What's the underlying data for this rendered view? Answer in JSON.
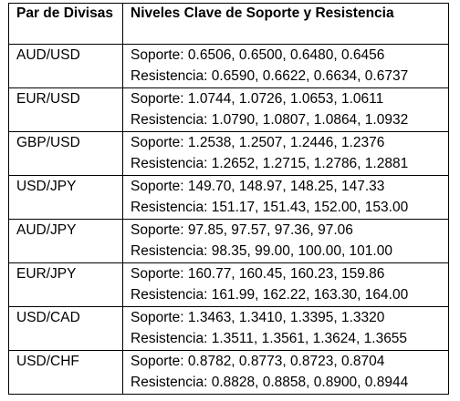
{
  "table": {
    "headers": {
      "pair": "Par de Divisas",
      "levels": "Niveles Clave de Soporte y Resistencia"
    },
    "rows": [
      {
        "pair": "AUD/USD",
        "support": "Soporte: 0.6506, 0.6500, 0.6480, 0.6456",
        "resistance": "Resistencia: 0.6590, 0.6622, 0.6634, 0.6737"
      },
      {
        "pair": "EUR/USD",
        "support": "Soporte: 1.0744, 1.0726, 1.0653, 1.0611",
        "resistance": "Resistencia: 1.0790, 1.0807, 1.0864, 1.0932"
      },
      {
        "pair": "GBP/USD",
        "support": "Soporte: 1.2538, 1.2507, 1.2446, 1.2376",
        "resistance": "Resistencia: 1.2652, 1.2715, 1.2786, 1.2881"
      },
      {
        "pair": "USD/JPY",
        "support": "Soporte: 149.70, 148.97, 148.25, 147.33",
        "resistance": "Resistencia: 151.17, 151.43, 152.00, 153.00"
      },
      {
        "pair": "AUD/JPY",
        "support": "Soporte: 97.85, 97.57, 97.36, 97.06",
        "resistance": "Resistencia: 98.35, 99.00, 100.00, 101.00"
      },
      {
        "pair": "EUR/JPY",
        "support": "Soporte: 160.77, 160.45, 160.23, 159.86",
        "resistance": "Resistencia: 161.99, 162.22, 163.30, 164.00"
      },
      {
        "pair": "USD/CAD",
        "support": "Soporte: 1.3463, 1.3410, 1.3395, 1.3320",
        "resistance": "Resistencia: 1.3511, 1.3561, 1.3624, 1.3655"
      },
      {
        "pair": "USD/CHF",
        "support": "Soporte: 0.8782, 0.8773, 0.8723, 0.8704",
        "resistance": "Resistencia: 0.8828, 0.8858, 0.8900, 0.8944"
      }
    ]
  }
}
